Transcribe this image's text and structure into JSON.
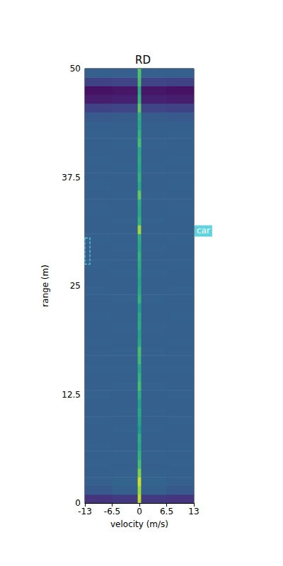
{
  "chart_data": {
    "type": "heatmap",
    "title": "RD",
    "x_label": "velocity (m/s)",
    "y_label": "range (m)",
    "xlim": [
      -13,
      13
    ],
    "xticks": [
      -13,
      -6.5,
      0,
      6.5,
      13
    ],
    "ylim": [
      0,
      50
    ],
    "yticks": [
      0,
      12.5,
      25,
      37.5,
      50
    ],
    "zlim": [
      0,
      1
    ],
    "velocity_edges": [
      -13,
      -6.5,
      -0.4,
      0.4,
      6.5,
      13
    ],
    "range_edges": [
      0,
      1,
      2,
      3,
      4,
      5,
      6,
      7,
      8,
      9,
      10,
      11,
      12,
      13,
      14,
      15,
      16,
      17,
      18,
      19,
      20,
      21,
      22,
      23,
      24,
      25,
      26,
      27,
      28,
      29,
      30,
      31,
      32,
      33,
      34,
      35,
      36,
      37,
      38,
      39,
      40,
      41,
      42,
      43,
      44,
      45,
      46,
      47,
      48,
      49,
      50
    ],
    "cells": [
      [
        0.15,
        0.17,
        0.9,
        0.17,
        0.15
      ],
      [
        0.28,
        0.3,
        0.85,
        0.3,
        0.28
      ],
      [
        0.3,
        0.32,
        0.92,
        0.32,
        0.3
      ],
      [
        0.3,
        0.31,
        0.8,
        0.31,
        0.3
      ],
      [
        0.31,
        0.3,
        0.7,
        0.3,
        0.31
      ],
      [
        0.3,
        0.31,
        0.65,
        0.31,
        0.3
      ],
      [
        0.31,
        0.3,
        0.6,
        0.3,
        0.31
      ],
      [
        0.3,
        0.3,
        0.62,
        0.3,
        0.3
      ],
      [
        0.3,
        0.31,
        0.55,
        0.31,
        0.3
      ],
      [
        0.31,
        0.3,
        0.58,
        0.3,
        0.31
      ],
      [
        0.3,
        0.31,
        0.6,
        0.31,
        0.3
      ],
      [
        0.3,
        0.3,
        0.57,
        0.3,
        0.3
      ],
      [
        0.31,
        0.3,
        0.62,
        0.3,
        0.31
      ],
      [
        0.3,
        0.31,
        0.7,
        0.31,
        0.3
      ],
      [
        0.3,
        0.3,
        0.65,
        0.3,
        0.3
      ],
      [
        0.31,
        0.31,
        0.6,
        0.31,
        0.31
      ],
      [
        0.3,
        0.3,
        0.68,
        0.3,
        0.3
      ],
      [
        0.3,
        0.31,
        0.7,
        0.31,
        0.3
      ],
      [
        0.31,
        0.3,
        0.6,
        0.3,
        0.31
      ],
      [
        0.3,
        0.3,
        0.58,
        0.3,
        0.3
      ],
      [
        0.3,
        0.31,
        0.62,
        0.31,
        0.3
      ],
      [
        0.31,
        0.3,
        0.6,
        0.3,
        0.31
      ],
      [
        0.3,
        0.3,
        0.55,
        0.3,
        0.3
      ],
      [
        0.3,
        0.31,
        0.65,
        0.31,
        0.3
      ],
      [
        0.31,
        0.3,
        0.6,
        0.3,
        0.31
      ],
      [
        0.3,
        0.3,
        0.58,
        0.3,
        0.3
      ],
      [
        0.3,
        0.31,
        0.6,
        0.31,
        0.3
      ],
      [
        0.31,
        0.3,
        0.62,
        0.3,
        0.31
      ],
      [
        0.3,
        0.3,
        0.65,
        0.3,
        0.3
      ],
      [
        0.3,
        0.31,
        0.6,
        0.31,
        0.3
      ],
      [
        0.31,
        0.3,
        0.62,
        0.3,
        0.31
      ],
      [
        0.3,
        0.3,
        0.85,
        0.3,
        0.3
      ],
      [
        0.3,
        0.31,
        0.65,
        0.31,
        0.3
      ],
      [
        0.31,
        0.3,
        0.6,
        0.3,
        0.31
      ],
      [
        0.3,
        0.3,
        0.62,
        0.3,
        0.3
      ],
      [
        0.3,
        0.31,
        0.75,
        0.31,
        0.3
      ],
      [
        0.31,
        0.3,
        0.6,
        0.3,
        0.31
      ],
      [
        0.3,
        0.3,
        0.65,
        0.3,
        0.3
      ],
      [
        0.3,
        0.31,
        0.6,
        0.31,
        0.3
      ],
      [
        0.31,
        0.3,
        0.62,
        0.3,
        0.31
      ],
      [
        0.3,
        0.3,
        0.6,
        0.3,
        0.3
      ],
      [
        0.3,
        0.31,
        0.7,
        0.31,
        0.3
      ],
      [
        0.31,
        0.3,
        0.65,
        0.3,
        0.31
      ],
      [
        0.3,
        0.3,
        0.6,
        0.3,
        0.3
      ],
      [
        0.28,
        0.29,
        0.62,
        0.29,
        0.28
      ],
      [
        0.2,
        0.21,
        0.75,
        0.21,
        0.2
      ],
      [
        0.08,
        0.09,
        0.65,
        0.09,
        0.08
      ],
      [
        0.05,
        0.06,
        0.6,
        0.06,
        0.05
      ],
      [
        0.2,
        0.21,
        0.7,
        0.21,
        0.2
      ],
      [
        0.3,
        0.3,
        0.72,
        0.3,
        0.3
      ]
    ],
    "annotations": [
      {
        "label": "car",
        "velocity": [
          -13,
          -11.8
        ],
        "range": [
          27.5,
          30.5
        ],
        "color": "#5fd4e0"
      }
    ]
  }
}
